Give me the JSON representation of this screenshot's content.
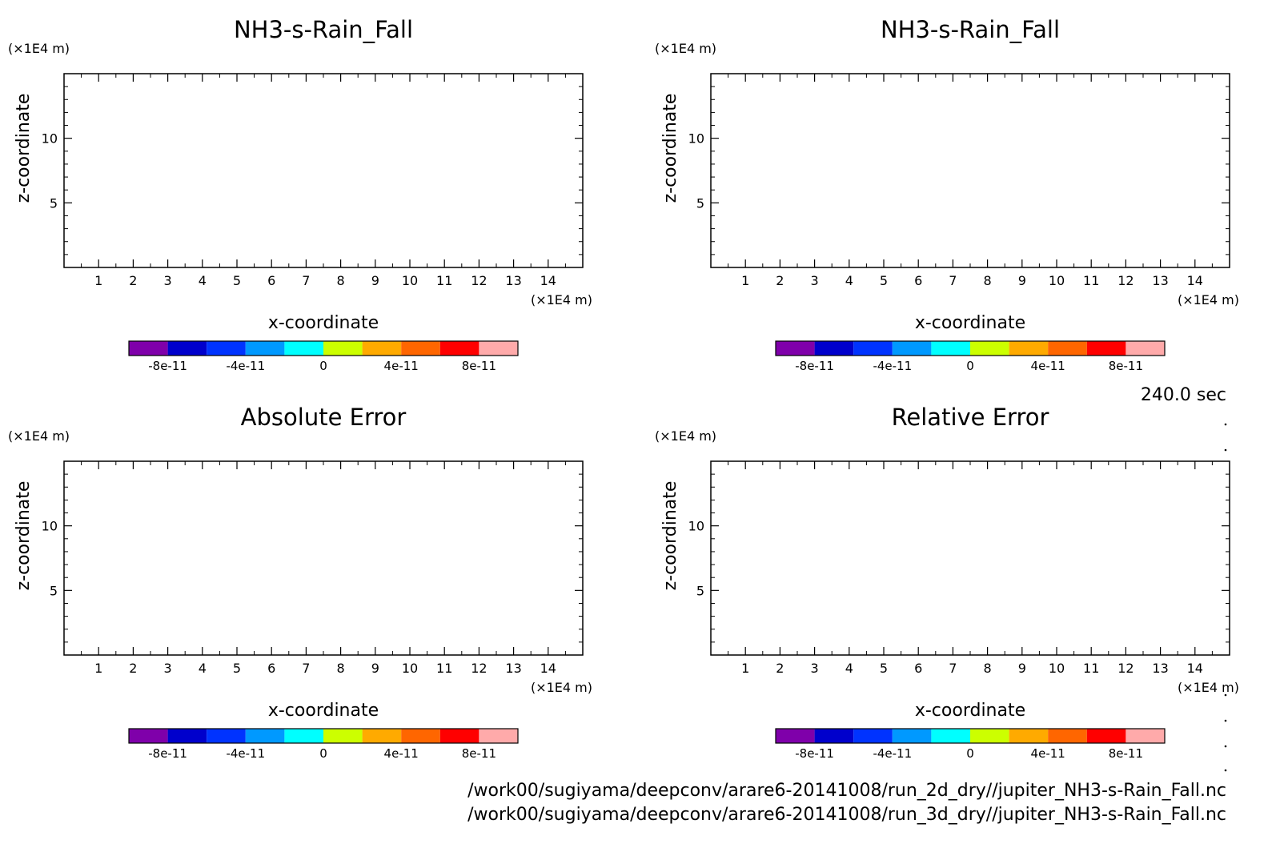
{
  "chart_data": [
    {
      "type": "heatmap",
      "title": "NH3-s-Rain_Fall",
      "xlabel": "x-coordinate",
      "ylabel": "z-coordinate",
      "x_unit": "(×1E4 m)",
      "y_unit": "(×1E4 m)",
      "xlim": [
        0,
        15
      ],
      "ylim": [
        0,
        15
      ],
      "x_ticks": [
        "1",
        "2",
        "3",
        "4",
        "5",
        "6",
        "7",
        "8",
        "9",
        "10",
        "11",
        "12",
        "13",
        "14"
      ],
      "y_ticks": [
        "5",
        "10"
      ],
      "grid": false,
      "colorbar": {
        "colors": [
          "#7f00aa",
          "#0000cc",
          "#0033ff",
          "#0099ff",
          "#00ffff",
          "#ccff00",
          "#ffaa00",
          "#ff6600",
          "#ff0000",
          "#ffaaaa"
        ],
        "tick_labels": [
          "-8e-11",
          "-4e-11",
          "0",
          "4e-11",
          "8e-11"
        ]
      }
    },
    {
      "type": "heatmap",
      "title": "NH3-s-Rain_Fall",
      "xlabel": "x-coordinate",
      "ylabel": "z-coordinate",
      "x_unit": "(×1E4 m)",
      "y_unit": "(×1E4 m)",
      "xlim": [
        0,
        15
      ],
      "ylim": [
        0,
        15
      ],
      "x_ticks": [
        "1",
        "2",
        "3",
        "4",
        "5",
        "6",
        "7",
        "8",
        "9",
        "10",
        "11",
        "12",
        "13",
        "14"
      ],
      "y_ticks": [
        "5",
        "10"
      ],
      "grid": false,
      "colorbar": {
        "colors": [
          "#7f00aa",
          "#0000cc",
          "#0033ff",
          "#0099ff",
          "#00ffff",
          "#ccff00",
          "#ffaa00",
          "#ff6600",
          "#ff0000",
          "#ffaaaa"
        ],
        "tick_labels": [
          "-8e-11",
          "-4e-11",
          "0",
          "4e-11",
          "8e-11"
        ]
      }
    },
    {
      "type": "heatmap",
      "title": "Absolute Error",
      "xlabel": "x-coordinate",
      "ylabel": "z-coordinate",
      "x_unit": "(×1E4 m)",
      "y_unit": "(×1E4 m)",
      "xlim": [
        0,
        15
      ],
      "ylim": [
        0,
        15
      ],
      "x_ticks": [
        "1",
        "2",
        "3",
        "4",
        "5",
        "6",
        "7",
        "8",
        "9",
        "10",
        "11",
        "12",
        "13",
        "14"
      ],
      "y_ticks": [
        "5",
        "10"
      ],
      "grid": false,
      "colorbar": {
        "colors": [
          "#7f00aa",
          "#0000cc",
          "#0033ff",
          "#0099ff",
          "#00ffff",
          "#ccff00",
          "#ffaa00",
          "#ff6600",
          "#ff0000",
          "#ffaaaa"
        ],
        "tick_labels": [
          "-8e-11",
          "-4e-11",
          "0",
          "4e-11",
          "8e-11"
        ]
      }
    },
    {
      "type": "heatmap",
      "title": "Relative Error",
      "xlabel": "x-coordinate",
      "ylabel": "z-coordinate",
      "x_unit": "(×1E4 m)",
      "y_unit": "(×1E4 m)",
      "xlim": [
        0,
        15
      ],
      "ylim": [
        0,
        15
      ],
      "x_ticks": [
        "1",
        "2",
        "3",
        "4",
        "5",
        "6",
        "7",
        "8",
        "9",
        "10",
        "11",
        "12",
        "13",
        "14"
      ],
      "y_ticks": [
        "5",
        "10"
      ],
      "grid": false,
      "colorbar": {
        "colors": [
          "#7f00aa",
          "#0000cc",
          "#0033ff",
          "#0099ff",
          "#00ffff",
          "#ccff00",
          "#ffaa00",
          "#ff6600",
          "#ff0000",
          "#ffaaaa"
        ],
        "tick_labels": [
          "-8e-11",
          "-4e-11",
          "0",
          "4e-11",
          "8e-11"
        ]
      }
    }
  ],
  "time_label": "240.0 sec",
  "footer_lines": [
    "/work00/sugiyama/deepconv/arare6-20141008/run_2d_dry//jupiter_NH3-s-Rain_Fall.nc",
    "/work00/sugiyama/deepconv/arare6-20141008/run_3d_dry//jupiter_NH3-s-Rain_Fall.nc"
  ]
}
